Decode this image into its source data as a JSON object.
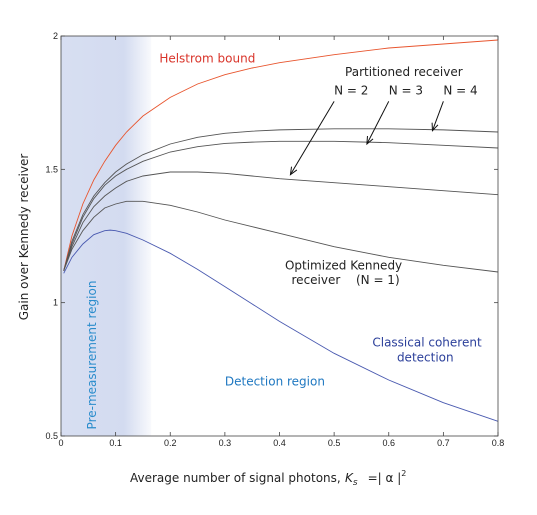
{
  "chart_data": {
    "type": "line",
    "xlabel": "Average number of signal photons,",
    "xlabel_math": {
      "symbol": "K",
      "subscript": "s",
      "eq": "=| α |",
      "sup": "2"
    },
    "ylabel": "Gain over Kennedy receiver",
    "xlim": [
      0,
      0.8
    ],
    "ylim": [
      0.5,
      2
    ],
    "xticks": [
      0,
      0.1,
      0.2,
      0.3,
      0.4,
      0.5,
      0.6,
      0.7,
      0.8
    ],
    "xtick_labels": [
      "0",
      "0.1",
      "0.2",
      "0.3",
      "0.4",
      "0.5",
      "0.6",
      "0.7",
      "0.8"
    ],
    "yticks": [
      0.5,
      1,
      1.5,
      2
    ],
    "ytick_labels": [
      "0.5",
      "1",
      "1.5",
      "2"
    ],
    "grid": false,
    "shaded_region": {
      "x": [
        0,
        0.165
      ],
      "label": "Pre-measurement region",
      "color": "#d3dbf0"
    },
    "series": [
      {
        "color": "#e8552e",
        "x": [
          0.005,
          0.02,
          0.04,
          0.06,
          0.08,
          0.1,
          0.12,
          0.15,
          0.2,
          0.25,
          0.3,
          0.35,
          0.4,
          0.5,
          0.6,
          0.7,
          0.8
        ],
        "y": [
          1.12,
          1.25,
          1.37,
          1.46,
          1.53,
          1.59,
          1.64,
          1.7,
          1.77,
          1.82,
          1.855,
          1.88,
          1.9,
          1.93,
          1.955,
          1.97,
          1.985
        ]
      },
      {
        "color": "#555555",
        "x": [
          0.005,
          0.02,
          0.04,
          0.06,
          0.08,
          0.1,
          0.12,
          0.15,
          0.2,
          0.25,
          0.3,
          0.35,
          0.4,
          0.5,
          0.6,
          0.7,
          0.8
        ],
        "y": [
          1.12,
          1.23,
          1.33,
          1.4,
          1.45,
          1.49,
          1.52,
          1.555,
          1.595,
          1.62,
          1.635,
          1.643,
          1.648,
          1.652,
          1.652,
          1.648,
          1.64
        ]
      },
      {
        "color": "#555555",
        "x": [
          0.005,
          0.02,
          0.04,
          0.06,
          0.08,
          0.1,
          0.12,
          0.15,
          0.2,
          0.25,
          0.3,
          0.35,
          0.4,
          0.5,
          0.6,
          0.7,
          0.8
        ],
        "y": [
          1.12,
          1.22,
          1.32,
          1.39,
          1.44,
          1.475,
          1.5,
          1.53,
          1.565,
          1.585,
          1.597,
          1.602,
          1.605,
          1.605,
          1.6,
          1.59,
          1.58
        ]
      },
      {
        "color": "#555555",
        "x": [
          0.005,
          0.02,
          0.04,
          0.06,
          0.08,
          0.1,
          0.12,
          0.15,
          0.2,
          0.25,
          0.3,
          0.35,
          0.4,
          0.5,
          0.6,
          0.7,
          0.8
        ],
        "y": [
          1.12,
          1.21,
          1.3,
          1.36,
          1.4,
          1.43,
          1.455,
          1.475,
          1.49,
          1.49,
          1.485,
          1.475,
          1.465,
          1.45,
          1.435,
          1.42,
          1.405
        ]
      },
      {
        "color": "#555555",
        "x": [
          0.005,
          0.02,
          0.04,
          0.06,
          0.08,
          0.1,
          0.12,
          0.15,
          0.2,
          0.25,
          0.3,
          0.35,
          0.4,
          0.5,
          0.6,
          0.7,
          0.8
        ],
        "y": [
          1.12,
          1.2,
          1.27,
          1.32,
          1.355,
          1.37,
          1.38,
          1.38,
          1.365,
          1.34,
          1.31,
          1.285,
          1.26,
          1.21,
          1.17,
          1.14,
          1.115
        ]
      },
      {
        "color": "#4a5ab0",
        "x": [
          0.005,
          0.02,
          0.04,
          0.06,
          0.08,
          0.09,
          0.1,
          0.12,
          0.15,
          0.2,
          0.25,
          0.3,
          0.35,
          0.4,
          0.5,
          0.6,
          0.7,
          0.8
        ],
        "y": [
          1.11,
          1.17,
          1.22,
          1.255,
          1.27,
          1.272,
          1.27,
          1.26,
          1.235,
          1.185,
          1.125,
          1.06,
          0.995,
          0.93,
          0.81,
          0.71,
          0.625,
          0.555
        ]
      }
    ],
    "annotations": [
      {
        "text": "Helstrom bound",
        "x": 0.18,
        "y": 1.9,
        "color": "#d9342a"
      },
      {
        "text": "Partitioned receiver",
        "x": 0.52,
        "y": 1.85,
        "color": "#222222"
      },
      {
        "text": "N = 2",
        "x": 0.5,
        "y": 1.78,
        "color": "#222222"
      },
      {
        "text": "N = 3",
        "x": 0.6,
        "y": 1.78,
        "color": "#222222"
      },
      {
        "text": "N = 4",
        "x": 0.7,
        "y": 1.78,
        "color": "#222222"
      },
      {
        "text": "Optimized Kennedy",
        "x": 0.41,
        "y": 1.125,
        "color": "#222222"
      },
      {
        "text": "receiver",
        "x": 0.422,
        "y": 1.07,
        "color": "#222222"
      },
      {
        "text": "(N = 1)",
        "x": 0.54,
        "y": 1.07,
        "color": "#222222"
      },
      {
        "text": "Classical coherent",
        "x": 0.57,
        "y": 0.835,
        "color": "#2b3f9a"
      },
      {
        "text": "detection",
        "x": 0.615,
        "y": 0.78,
        "color": "#2b3f9a"
      },
      {
        "text": "Detection region",
        "x": 0.3,
        "y": 0.69,
        "color": "#1f78c1"
      }
    ],
    "arrows": [
      {
        "from": [
          0.5,
          1.755
        ],
        "to": [
          0.42,
          1.48
        ]
      },
      {
        "from": [
          0.6,
          1.755
        ],
        "to": [
          0.56,
          1.595
        ]
      },
      {
        "from": [
          0.7,
          1.755
        ],
        "to": [
          0.68,
          1.645
        ]
      }
    ]
  }
}
